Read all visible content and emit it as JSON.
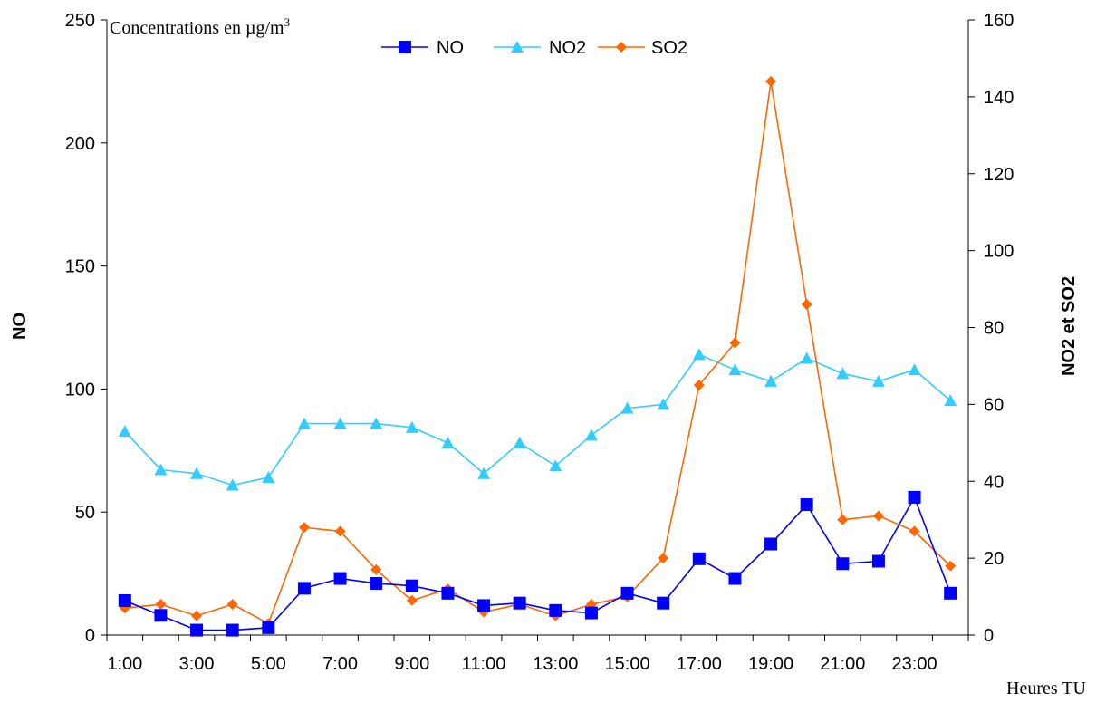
{
  "chart_data": {
    "type": "line",
    "annotation": "Concentrations en µg/m",
    "annotation_superscript": "3",
    "xlabel": "Heures TU",
    "ylabel_left": "NO",
    "ylabel_right": "NO2 et SO2",
    "y_left_range": [
      0,
      250
    ],
    "y_left_ticks": [
      "0",
      "50",
      "100",
      "150",
      "200",
      "250"
    ],
    "y_right_range": [
      0,
      160
    ],
    "y_right_ticks": [
      "0",
      "20",
      "40",
      "60",
      "80",
      "100",
      "120",
      "140",
      "160"
    ],
    "x_tick_labels": [
      "1:00",
      "3:00",
      "5:00",
      "7:00",
      "9:00",
      "11:00",
      "13:00",
      "15:00",
      "17:00",
      "19:00",
      "21:00",
      "23:00"
    ],
    "x": [
      "1:00",
      "2:00",
      "3:00",
      "4:00",
      "5:00",
      "6:00",
      "7:00",
      "8:00",
      "9:00",
      "10:00",
      "11:00",
      "12:00",
      "13:00",
      "14:00",
      "15:00",
      "16:00",
      "17:00",
      "18:00",
      "19:00",
      "20:00",
      "21:00",
      "22:00",
      "23:00",
      "24:00"
    ],
    "legend_position": "top-center",
    "grid": false,
    "series": [
      {
        "name": "NO",
        "axis": "left",
        "marker": "square",
        "color": "#0000FF",
        "values": [
          14,
          8,
          2,
          2,
          3,
          19,
          23,
          21,
          20,
          17,
          12,
          13,
          10,
          9,
          17,
          13,
          31,
          23,
          37,
          53,
          29,
          30,
          56,
          17
        ]
      },
      {
        "name": "NO2",
        "axis": "right",
        "marker": "triangle",
        "color": "#33CCFF",
        "values": [
          53,
          43,
          42,
          39,
          41,
          55,
          55,
          55,
          54,
          50,
          42,
          50,
          44,
          52,
          59,
          60,
          73,
          69,
          66,
          72,
          68,
          66,
          69,
          61
        ]
      },
      {
        "name": "SO2",
        "axis": "right",
        "marker": "diamond",
        "color": "#FF6600",
        "values": [
          7,
          8,
          5,
          8,
          3,
          28,
          27,
          17,
          9,
          12,
          6,
          8,
          5,
          8,
          10,
          20,
          65,
          76,
          144,
          86,
          30,
          31,
          27,
          18
        ]
      }
    ]
  }
}
